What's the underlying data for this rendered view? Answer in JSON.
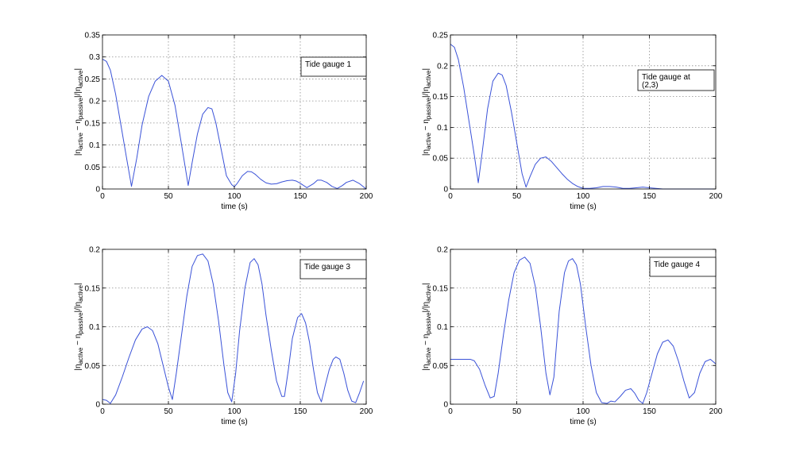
{
  "chart_data": [
    {
      "type": "line",
      "xlabel": "time (s)",
      "ylabel": {
        "a": "|η",
        "b": "active",
        "c": " − η",
        "d": "passive",
        "e": "|/|η",
        "f": "active",
        "g": "|"
      },
      "legend": [
        "Tide gauge 1"
      ],
      "legend_position": "top-right",
      "xlim": [
        0,
        200
      ],
      "ylim": [
        0,
        0.35
      ],
      "xticks": [
        "0",
        "50",
        "100",
        "150",
        "200"
      ],
      "yticks": [
        "0",
        "0.05",
        "0.1",
        "0.15",
        "0.2",
        "0.25",
        "0.3",
        "0.35"
      ],
      "grid": true,
      "line_color": "#3a52d8",
      "series": [
        {
          "x": [
            0,
            3,
            6,
            10,
            14,
            18,
            22,
            26,
            30,
            35,
            40,
            45,
            50,
            55,
            60,
            65,
            68,
            72,
            76,
            80,
            83,
            86,
            90,
            94,
            98,
            100,
            102,
            106,
            110,
            113,
            116,
            120,
            124,
            128,
            132,
            136,
            140,
            144,
            147,
            150,
            155,
            160,
            163,
            166,
            170,
            174,
            178,
            182,
            185,
            190,
            195,
            200
          ],
          "y": [
            0.295,
            0.29,
            0.27,
            0.215,
            0.145,
            0.075,
            0.006,
            0.07,
            0.145,
            0.21,
            0.245,
            0.258,
            0.245,
            0.19,
            0.1,
            0.008,
            0.06,
            0.125,
            0.17,
            0.185,
            0.182,
            0.15,
            0.09,
            0.03,
            0.01,
            0.005,
            0.012,
            0.03,
            0.04,
            0.039,
            0.033,
            0.022,
            0.014,
            0.011,
            0.012,
            0.016,
            0.019,
            0.02,
            0.018,
            0.013,
            0.003,
            0.012,
            0.02,
            0.02,
            0.015,
            0.006,
            0.001,
            0.008,
            0.015,
            0.02,
            0.012,
            0.0
          ]
        }
      ]
    },
    {
      "type": "line",
      "xlabel": "time (s)",
      "ylabel": {
        "a": "|η",
        "b": "active",
        "c": " − η",
        "d": "passive",
        "e": "|/|η",
        "f": "active",
        "g": "|"
      },
      "legend": [
        "Tide gauge at",
        "(2,3)"
      ],
      "legend_position": "top-right",
      "xlim": [
        0,
        200
      ],
      "ylim": [
        0,
        0.25
      ],
      "xticks": [
        "0",
        "50",
        "100",
        "150",
        "200"
      ],
      "yticks": [
        "0",
        "0.05",
        "0.1",
        "0.15",
        "0.2",
        "0.25"
      ],
      "grid": true,
      "line_color": "#3a52d8",
      "series": [
        {
          "x": [
            0,
            3,
            6,
            10,
            14,
            18,
            21,
            24,
            28,
            32,
            36,
            39,
            42,
            46,
            50,
            54,
            57,
            60,
            64,
            68,
            72,
            76,
            80,
            84,
            88,
            92,
            96,
            100,
            105,
            110,
            115,
            120,
            125,
            130,
            135,
            140,
            145,
            150,
            155,
            160,
            170,
            180,
            190,
            200
          ],
          "y": [
            0.235,
            0.23,
            0.21,
            0.165,
            0.11,
            0.055,
            0.01,
            0.06,
            0.13,
            0.175,
            0.188,
            0.185,
            0.168,
            0.125,
            0.075,
            0.025,
            0.003,
            0.02,
            0.04,
            0.05,
            0.052,
            0.045,
            0.035,
            0.025,
            0.016,
            0.009,
            0.004,
            0.001,
            0.001,
            0.002,
            0.004,
            0.004,
            0.003,
            0.001,
            0.001,
            0.002,
            0.003,
            0.002,
            0.001,
            0.0,
            0.0,
            0.0,
            0.0,
            0.0
          ]
        }
      ]
    },
    {
      "type": "line",
      "xlabel": "time (s)",
      "ylabel": {
        "a": "|η",
        "b": "active",
        "c": " − η",
        "d": "passive",
        "e": "|/|η",
        "f": "active",
        "g": "|"
      },
      "legend": [
        "Tide gauge 3"
      ],
      "legend_position": "top-right",
      "xlim": [
        0,
        200
      ],
      "ylim": [
        0,
        0.2
      ],
      "xticks": [
        "0",
        "50",
        "100",
        "150",
        "200"
      ],
      "yticks": [
        "0",
        "0.05",
        "0.1",
        "0.15",
        "0.2"
      ],
      "grid": true,
      "line_color": "#3a52d8",
      "series": [
        {
          "x": [
            0,
            3,
            6,
            10,
            15,
            20,
            25,
            30,
            34,
            38,
            42,
            46,
            50,
            53,
            56,
            60,
            64,
            68,
            72,
            76,
            80,
            84,
            88,
            92,
            95,
            98,
            101,
            104,
            108,
            112,
            115,
            118,
            121,
            124,
            128,
            132,
            136,
            138,
            141,
            144,
            148,
            151,
            154,
            157,
            160,
            163,
            166,
            169,
            172,
            175,
            177,
            180,
            183,
            186,
            189,
            192,
            195,
            198
          ],
          "y": [
            0.006,
            0.005,
            0.001,
            0.012,
            0.035,
            0.06,
            0.083,
            0.097,
            0.1,
            0.095,
            0.078,
            0.05,
            0.022,
            0.006,
            0.04,
            0.09,
            0.14,
            0.178,
            0.192,
            0.194,
            0.185,
            0.155,
            0.108,
            0.052,
            0.015,
            0.003,
            0.04,
            0.095,
            0.15,
            0.183,
            0.188,
            0.18,
            0.155,
            0.115,
            0.07,
            0.03,
            0.01,
            0.01,
            0.045,
            0.085,
            0.112,
            0.117,
            0.105,
            0.08,
            0.045,
            0.015,
            0.003,
            0.025,
            0.045,
            0.058,
            0.061,
            0.058,
            0.04,
            0.018,
            0.004,
            0.002,
            0.015,
            0.03
          ]
        }
      ]
    },
    {
      "type": "line",
      "xlabel": "time (s)",
      "ylabel": {
        "a": "|η",
        "b": "active",
        "c": " − η",
        "d": "passive",
        "e": "|/|η",
        "f": "active",
        "g": "|"
      },
      "legend": [
        "Tide gauge 4"
      ],
      "legend_position": "top-right",
      "xlim": [
        0,
        200
      ],
      "ylim": [
        0,
        0.2
      ],
      "xticks": [
        "0",
        "50",
        "100",
        "150",
        "200"
      ],
      "yticks": [
        "0",
        "0.05",
        "0.1",
        "0.15",
        "0.2"
      ],
      "grid": true,
      "line_color": "#3a52d8",
      "series": [
        {
          "x": [
            0,
            5,
            10,
            15,
            18,
            22,
            26,
            30,
            33,
            36,
            40,
            44,
            48,
            52,
            56,
            60,
            64,
            68,
            72,
            75,
            78,
            82,
            86,
            89,
            92,
            95,
            98,
            102,
            106,
            110,
            114,
            118,
            121,
            124,
            128,
            132,
            136,
            139,
            142,
            145,
            148,
            152,
            156,
            160,
            164,
            168,
            172,
            176,
            180,
            184,
            188,
            192,
            196,
            200
          ],
          "y": [
            0.058,
            0.058,
            0.058,
            0.058,
            0.056,
            0.045,
            0.025,
            0.008,
            0.01,
            0.04,
            0.09,
            0.135,
            0.17,
            0.186,
            0.19,
            0.182,
            0.152,
            0.1,
            0.04,
            0.012,
            0.035,
            0.12,
            0.17,
            0.185,
            0.188,
            0.18,
            0.155,
            0.1,
            0.05,
            0.015,
            0.002,
            0.001,
            0.004,
            0.003,
            0.01,
            0.018,
            0.02,
            0.014,
            0.005,
            0.001,
            0.015,
            0.04,
            0.065,
            0.08,
            0.083,
            0.075,
            0.055,
            0.03,
            0.008,
            0.015,
            0.04,
            0.055,
            0.058,
            0.052
          ]
        }
      ]
    }
  ]
}
